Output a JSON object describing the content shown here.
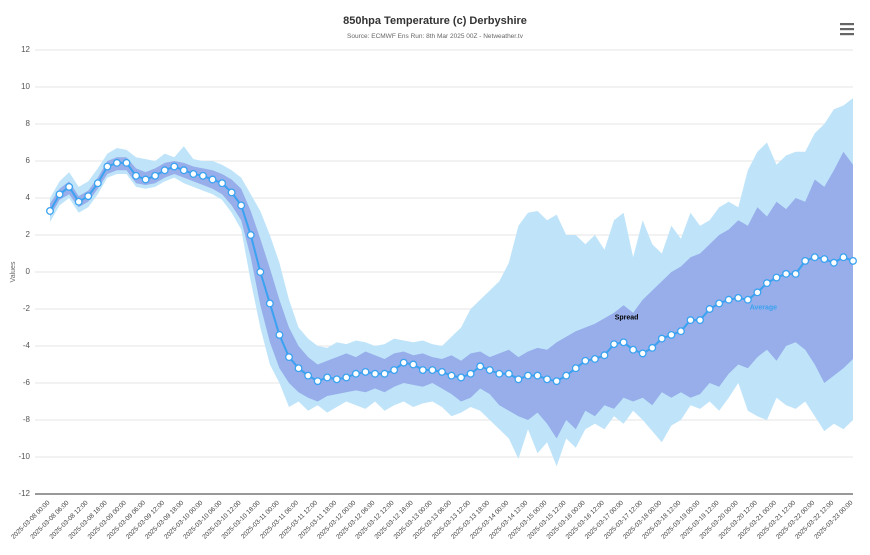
{
  "chart_data": {
    "type": "line",
    "title": "850hpa Temperature (c) Derbyshire",
    "subtitle": "Source: ECMWF Ens Run: 8th Mar 2025 00Z - Netweather.tv",
    "y_label": "Values",
    "categories": [
      "2025-03-08 00:00",
      null,
      "2025-03-08 06:00",
      null,
      "2025-03-08 12:00",
      null,
      "2025-03-08 18:00",
      null,
      "2025-03-09 00:00",
      null,
      "2025-03-09 06:00",
      null,
      "2025-03-09 12:00",
      null,
      "2025-03-09 18:00",
      null,
      "2025-03-10 00:00",
      null,
      "2025-03-10 06:00",
      null,
      "2025-03-10 12:00",
      null,
      "2025-03-10 18:00",
      null,
      "2025-03-11 00:00",
      null,
      "2025-03-11 06:00",
      null,
      "2025-03-11 12:00",
      null,
      "2025-03-11 18:00",
      null,
      "2025-03-12 00:00",
      null,
      "2025-03-12 06:00",
      null,
      "2025-03-12 12:00",
      null,
      "2025-03-12 18:00",
      null,
      "2025-03-13 00:00",
      null,
      "2025-03-13 06:00",
      null,
      "2025-03-13 12:00",
      null,
      "2025-03-13 18:00",
      null,
      "2025-03-14 00:00",
      null,
      "2025-03-14 12:00",
      null,
      "2025-03-15 00:00",
      null,
      "2025-03-15 12:00",
      null,
      "2025-03-16 00:00",
      null,
      "2025-03-16 12:00",
      null,
      "2025-03-17 00:00",
      null,
      "2025-03-17 12:00",
      null,
      "2025-03-18 00:00",
      null,
      "2025-03-18 12:00",
      null,
      "2025-03-19 00:00",
      null,
      "2025-03-19 12:00",
      null,
      "2025-03-20 00:00",
      null,
      "2025-03-20 12:00",
      null,
      "2025-03-21 00:00",
      null,
      "2025-03-21 12:00",
      null,
      "2025-03-22 00:00",
      null,
      "2025-03-22 12:00",
      null,
      "2025-03-23 00:00"
    ],
    "bands": [
      {
        "color": "#bfe4fa",
        "high": [
          4.0,
          4.9,
          5.4,
          4.6,
          4.9,
          5.6,
          6.4,
          6.7,
          6.6,
          6.2,
          6.1,
          6.0,
          6.4,
          6.2,
          6.8,
          6.1,
          6.0,
          6.0,
          5.8,
          5.5,
          5.1,
          4.2,
          3.3,
          2.0,
          0.5,
          -1.5,
          -3.0,
          -3.6,
          -4.0,
          -4.1,
          -3.8,
          -3.9,
          -3.7,
          -3.8,
          -4.0,
          -3.9,
          -3.6,
          -3.7,
          -3.8,
          -3.7,
          -3.9,
          -4.0,
          -3.5,
          -3.0,
          -2.0,
          -1.5,
          -1.0,
          -0.5,
          0.5,
          2.5,
          3.2,
          3.3,
          2.8,
          3.1,
          2.0,
          2.0,
          1.5,
          2.0,
          1.2,
          2.8,
          3.2,
          0.8,
          2.8,
          1.5,
          1.0,
          2.5,
          1.8,
          3.2,
          2.5,
          2.8,
          3.5,
          3.8,
          3.5,
          5.5,
          6.5,
          7.0,
          5.8,
          6.3,
          6.5,
          6.5,
          7.5,
          8.0,
          8.8,
          9.0,
          9.4
        ],
        "low": [
          2.7,
          3.6,
          4.0,
          3.2,
          3.5,
          4.2,
          5.1,
          5.3,
          5.3,
          4.6,
          4.5,
          4.6,
          4.9,
          5.1,
          4.8,
          4.6,
          4.4,
          4.2,
          3.9,
          3.2,
          2.3,
          -0.5,
          -3.0,
          -5.0,
          -6.0,
          -7.3,
          -7.0,
          -7.5,
          -7.2,
          -7.6,
          -7.3,
          -7.0,
          -7.2,
          -7.4,
          -7.0,
          -7.5,
          -7.2,
          -7.0,
          -7.3,
          -7.1,
          -7.0,
          -7.3,
          -7.8,
          -7.6,
          -7.3,
          -7.5,
          -8.0,
          -8.5,
          -9.0,
          -10.1,
          -8.5,
          -9.8,
          -9.2,
          -10.5,
          -9.0,
          -9.5,
          -8.5,
          -8.2,
          -8.5,
          -7.8,
          -8.2,
          -7.5,
          -8.0,
          -8.6,
          -9.2,
          -8.3,
          -8.0,
          -7.2,
          -7.4,
          -7.0,
          -7.5,
          -6.8,
          -6.0,
          -7.5,
          -7.8,
          -8.0,
          -6.8,
          -7.2,
          -7.4,
          -7.0,
          -7.8,
          -8.6,
          -8.2,
          -8.5,
          -8.0
        ]
      },
      {
        "name": "Spread",
        "color": "#8fa5e6",
        "high": [
          3.7,
          4.5,
          4.9,
          4.1,
          4.4,
          5.1,
          6.0,
          6.2,
          6.2,
          5.6,
          5.4,
          5.6,
          5.9,
          6.0,
          5.9,
          5.7,
          5.6,
          5.5,
          5.3,
          5.0,
          4.5,
          3.3,
          1.8,
          0.2,
          -1.5,
          -3.0,
          -4.0,
          -4.6,
          -5.0,
          -4.8,
          -4.6,
          -4.4,
          -4.6,
          -4.3,
          -4.5,
          -4.7,
          -4.4,
          -4.3,
          -4.5,
          -4.4,
          -4.6,
          -4.7,
          -4.5,
          -4.8,
          -4.4,
          -4.3,
          -4.6,
          -4.4,
          -4.2,
          -4.6,
          -4.3,
          -4.1,
          -4.2,
          -3.8,
          -3.5,
          -3.2,
          -3.0,
          -2.8,
          -2.5,
          -2.2,
          -1.8,
          -2.2,
          -1.5,
          -1.0,
          -0.5,
          0.0,
          0.3,
          0.8,
          1.0,
          1.5,
          2.0,
          2.3,
          2.8,
          2.5,
          3.5,
          3.0,
          3.8,
          3.4,
          4.0,
          3.8,
          5.0,
          4.6,
          5.5,
          6.5,
          5.8
        ],
        "low": [
          3.0,
          3.9,
          4.2,
          3.5,
          3.8,
          4.5,
          5.3,
          5.5,
          5.5,
          4.8,
          4.7,
          4.8,
          5.1,
          5.3,
          5.1,
          4.9,
          4.7,
          4.5,
          4.2,
          3.6,
          2.8,
          0.8,
          -1.8,
          -3.8,
          -5.2,
          -6.0,
          -6.5,
          -6.8,
          -7.0,
          -6.7,
          -6.6,
          -6.5,
          -6.4,
          -6.5,
          -6.3,
          -6.5,
          -6.2,
          -6.0,
          -6.1,
          -6.2,
          -6.0,
          -6.3,
          -6.6,
          -7.0,
          -6.8,
          -6.3,
          -6.6,
          -7.2,
          -7.5,
          -7.8,
          -8.0,
          -7.6,
          -8.2,
          -9.0,
          -8.0,
          -8.5,
          -7.5,
          -7.8,
          -7.2,
          -7.4,
          -6.8,
          -7.0,
          -6.8,
          -7.2,
          -6.5,
          -6.8,
          -6.5,
          -6.8,
          -6.6,
          -6.0,
          -6.2,
          -5.5,
          -5.0,
          -5.2,
          -4.6,
          -4.2,
          -4.8,
          -4.0,
          -3.8,
          -4.2,
          -5.0,
          -6.0,
          -5.6,
          -5.2,
          -4.7
        ]
      }
    ],
    "series": [
      {
        "name": "Average",
        "color": "#3aa2f0",
        "values": [
          3.3,
          4.2,
          4.6,
          3.8,
          4.1,
          4.8,
          5.7,
          5.9,
          5.9,
          5.2,
          5.0,
          5.2,
          5.5,
          5.7,
          5.5,
          5.3,
          5.2,
          5.0,
          4.8,
          4.3,
          3.6,
          2.0,
          0.0,
          -1.7,
          -3.4,
          -4.6,
          -5.2,
          -5.6,
          -5.9,
          -5.7,
          -5.8,
          -5.7,
          -5.5,
          -5.4,
          -5.5,
          -5.5,
          -5.3,
          -4.9,
          -5.0,
          -5.3,
          -5.3,
          -5.4,
          -5.6,
          -5.7,
          -5.5,
          -5.1,
          -5.3,
          -5.5,
          -5.5,
          -5.8,
          -5.6,
          -5.6,
          -5.8,
          -5.9,
          -5.6,
          -5.2,
          -4.8,
          -4.7,
          -4.5,
          -3.9,
          -3.8,
          -4.2,
          -4.4,
          -4.1,
          -3.6,
          -3.4,
          -3.2,
          -2.6,
          -2.6,
          -2.0,
          -1.7,
          -1.5,
          -1.4,
          -1.5,
          -1.1,
          -0.6,
          -0.3,
          -0.1,
          -0.1,
          0.6,
          0.8,
          0.7,
          0.5,
          0.8,
          0.6
        ]
      }
    ],
    "ylim": [
      -12,
      12
    ],
    "yticks": [
      -12,
      -10,
      -8,
      -6,
      -4,
      -2,
      0,
      2,
      4,
      6,
      8,
      10,
      12
    ],
    "grid": true
  }
}
